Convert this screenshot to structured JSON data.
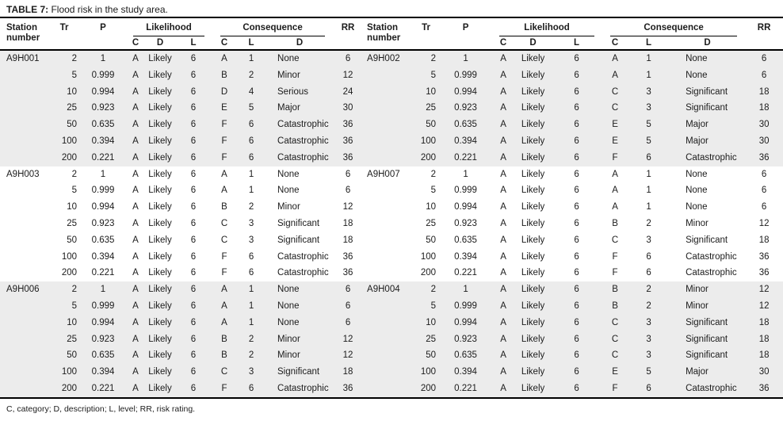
{
  "title": {
    "label": "TABLE 7:",
    "text": "Flood risk in the study area."
  },
  "header": {
    "station": "Station number",
    "tr": "Tr",
    "p": "P",
    "likelihood": "Likelihood",
    "consequence": "Consequence",
    "rr": "RR",
    "likelihood_sub": [
      "C",
      "D",
      "L"
    ],
    "consequence_sub": [
      "C",
      "L",
      "D"
    ]
  },
  "footnote": "C, category; D, description; L, level; RR, risk rating.",
  "colors": {
    "stripe": "#ececec",
    "rule": "#000000",
    "text": "#1c1c1c"
  },
  "rows": [
    {
      "shade": true,
      "left": [
        "A9H001",
        "2",
        "1",
        "A",
        "Likely",
        "6",
        "A",
        "1",
        "None",
        "6"
      ],
      "right": [
        "A9H002",
        "2",
        "1",
        "A",
        "Likely",
        "6",
        "A",
        "1",
        "None",
        "6"
      ]
    },
    {
      "shade": true,
      "left": [
        "",
        "5",
        "0.999",
        "A",
        "Likely",
        "6",
        "B",
        "2",
        "Minor",
        "12"
      ],
      "right": [
        "",
        "5",
        "0.999",
        "A",
        "Likely",
        "6",
        "A",
        "1",
        "None",
        "6"
      ]
    },
    {
      "shade": true,
      "left": [
        "",
        "10",
        "0.994",
        "A",
        "Likely",
        "6",
        "D",
        "4",
        "Serious",
        "24"
      ],
      "right": [
        "",
        "10",
        "0.994",
        "A",
        "Likely",
        "6",
        "C",
        "3",
        "Significant",
        "18"
      ]
    },
    {
      "shade": true,
      "left": [
        "",
        "25",
        "0.923",
        "A",
        "Likely",
        "6",
        "E",
        "5",
        "Major",
        "30"
      ],
      "right": [
        "",
        "25",
        "0.923",
        "A",
        "Likely",
        "6",
        "C",
        "3",
        "Significant",
        "18"
      ]
    },
    {
      "shade": true,
      "left": [
        "",
        "50",
        "0.635",
        "A",
        "Likely",
        "6",
        "F",
        "6",
        "Catastrophic",
        "36"
      ],
      "right": [
        "",
        "50",
        "0.635",
        "A",
        "Likely",
        "6",
        "E",
        "5",
        "Major",
        "30"
      ]
    },
    {
      "shade": true,
      "left": [
        "",
        "100",
        "0.394",
        "A",
        "Likely",
        "6",
        "F",
        "6",
        "Catastrophic",
        "36"
      ],
      "right": [
        "",
        "100",
        "0.394",
        "A",
        "Likely",
        "6",
        "E",
        "5",
        "Major",
        "30"
      ]
    },
    {
      "shade": true,
      "left": [
        "",
        "200",
        "0.221",
        "A",
        "Likely",
        "6",
        "F",
        "6",
        "Catastrophic",
        "36"
      ],
      "right": [
        "",
        "200",
        "0.221",
        "A",
        "Likely",
        "6",
        "F",
        "6",
        "Catastrophic",
        "36"
      ]
    },
    {
      "shade": false,
      "left": [
        "A9H003",
        "2",
        "1",
        "A",
        "Likely",
        "6",
        "A",
        "1",
        "None",
        "6"
      ],
      "right": [
        "A9H007",
        "2",
        "1",
        "A",
        "Likely",
        "6",
        "A",
        "1",
        "None",
        "6"
      ]
    },
    {
      "shade": false,
      "left": [
        "",
        "5",
        "0.999",
        "A",
        "Likely",
        "6",
        "A",
        "1",
        "None",
        "6"
      ],
      "right": [
        "",
        "5",
        "0.999",
        "A",
        "Likely",
        "6",
        "A",
        "1",
        "None",
        "6"
      ]
    },
    {
      "shade": false,
      "left": [
        "",
        "10",
        "0.994",
        "A",
        "Likely",
        "6",
        "B",
        "2",
        "Minor",
        "12"
      ],
      "right": [
        "",
        "10",
        "0.994",
        "A",
        "Likely",
        "6",
        "A",
        "1",
        "None",
        "6"
      ]
    },
    {
      "shade": false,
      "left": [
        "",
        "25",
        "0.923",
        "A",
        "Likely",
        "6",
        "C",
        "3",
        "Significant",
        "18"
      ],
      "right": [
        "",
        "25",
        "0.923",
        "A",
        "Likely",
        "6",
        "B",
        "2",
        "Minor",
        "12"
      ]
    },
    {
      "shade": false,
      "left": [
        "",
        "50",
        "0.635",
        "A",
        "Likely",
        "6",
        "C",
        "3",
        "Significant",
        "18"
      ],
      "right": [
        "",
        "50",
        "0.635",
        "A",
        "Likely",
        "6",
        "C",
        "3",
        "Significant",
        "18"
      ]
    },
    {
      "shade": false,
      "left": [
        "",
        "100",
        "0.394",
        "A",
        "Likely",
        "6",
        "F",
        "6",
        "Catastrophic",
        "36"
      ],
      "right": [
        "",
        "100",
        "0.394",
        "A",
        "Likely",
        "6",
        "F",
        "6",
        "Catastrophic",
        "36"
      ]
    },
    {
      "shade": false,
      "left": [
        "",
        "200",
        "0.221",
        "A",
        "Likely",
        "6",
        "F",
        "6",
        "Catastrophic",
        "36"
      ],
      "right": [
        "",
        "200",
        "0.221",
        "A",
        "Likely",
        "6",
        "F",
        "6",
        "Catastrophic",
        "36"
      ]
    },
    {
      "shade": true,
      "left": [
        "A9H006",
        "2",
        "1",
        "A",
        "Likely",
        "6",
        "A",
        "1",
        "None",
        "6"
      ],
      "right": [
        "A9H004",
        "2",
        "1",
        "A",
        "Likely",
        "6",
        "B",
        "2",
        "Minor",
        "12"
      ]
    },
    {
      "shade": true,
      "left": [
        "",
        "5",
        "0.999",
        "A",
        "Likely",
        "6",
        "A",
        "1",
        "None",
        "6"
      ],
      "right": [
        "",
        "5",
        "0.999",
        "A",
        "Likely",
        "6",
        "B",
        "2",
        "Minor",
        "12"
      ]
    },
    {
      "shade": true,
      "left": [
        "",
        "10",
        "0.994",
        "A",
        "Likely",
        "6",
        "A",
        "1",
        "None",
        "6"
      ],
      "right": [
        "",
        "10",
        "0.994",
        "A",
        "Likely",
        "6",
        "C",
        "3",
        "Significant",
        "18"
      ]
    },
    {
      "shade": true,
      "left": [
        "",
        "25",
        "0.923",
        "A",
        "Likely",
        "6",
        "B",
        "2",
        "Minor",
        "12"
      ],
      "right": [
        "",
        "25",
        "0.923",
        "A",
        "Likely",
        "6",
        "C",
        "3",
        "Significant",
        "18"
      ]
    },
    {
      "shade": true,
      "left": [
        "",
        "50",
        "0.635",
        "A",
        "Likely",
        "6",
        "B",
        "2",
        "Minor",
        "12"
      ],
      "right": [
        "",
        "50",
        "0.635",
        "A",
        "Likely",
        "6",
        "C",
        "3",
        "Significant",
        "18"
      ]
    },
    {
      "shade": true,
      "left": [
        "",
        "100",
        "0.394",
        "A",
        "Likely",
        "6",
        "C",
        "3",
        "Significant",
        "18"
      ],
      "right": [
        "",
        "100",
        "0.394",
        "A",
        "Likely",
        "6",
        "E",
        "5",
        "Major",
        "30"
      ]
    },
    {
      "shade": true,
      "left": [
        "",
        "200",
        "0.221",
        "A",
        "Likely",
        "6",
        "F",
        "6",
        "Catastrophic",
        "36"
      ],
      "right": [
        "",
        "200",
        "0.221",
        "A",
        "Likely",
        "6",
        "F",
        "6",
        "Catastrophic",
        "36"
      ]
    }
  ]
}
